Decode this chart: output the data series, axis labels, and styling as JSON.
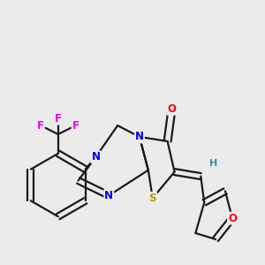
{
  "bg_color": "#ebebeb",
  "bond_color": "#1a1a1a",
  "bond_width": 1.6,
  "atom_colors": {
    "N": "#0000ee",
    "O": "#ff0000",
    "S": "#b8960c",
    "F": "#ee00ee",
    "H": "#3a9090",
    "C": "#1a1a1a"
  },
  "font_size": 8.5,
  "fig_size": [
    3.0,
    3.0
  ],
  "dpi": 100
}
